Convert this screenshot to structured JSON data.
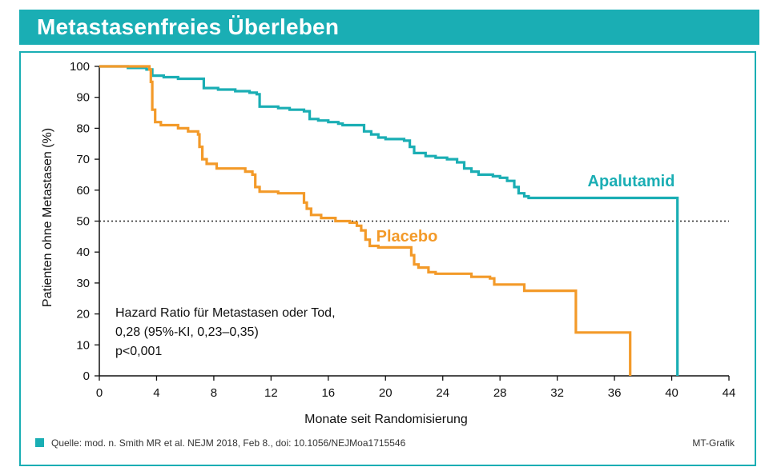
{
  "header": {
    "title": "Metastasenfreies Überleben"
  },
  "chart_data": {
    "type": "line",
    "title": "Metastasenfreies Überleben",
    "xlabel": "Monate seit Randomisierung",
    "ylabel": "Patienten ohne Metastasen (%)",
    "xlim": [
      0,
      44
    ],
    "ylim": [
      0,
      100
    ],
    "xticks": [
      0,
      4,
      8,
      12,
      16,
      20,
      24,
      28,
      32,
      36,
      40,
      44
    ],
    "yticks": [
      0,
      10,
      20,
      30,
      40,
      50,
      60,
      70,
      80,
      90,
      100
    ],
    "reference_line": {
      "y": 50,
      "style": "dotted"
    },
    "series": [
      {
        "name": "Apalutamid",
        "color": "#1aaeb4",
        "points": [
          [
            0,
            100
          ],
          [
            1,
            100
          ],
          [
            2,
            99.5
          ],
          [
            3.3,
            99
          ],
          [
            3.7,
            97
          ],
          [
            4.5,
            96.5
          ],
          [
            5.5,
            96
          ],
          [
            7,
            96
          ],
          [
            7.3,
            93
          ],
          [
            8.3,
            92.5
          ],
          [
            9.5,
            92
          ],
          [
            10.5,
            91.5
          ],
          [
            11,
            91
          ],
          [
            11.2,
            87
          ],
          [
            12.5,
            86.5
          ],
          [
            13.3,
            86
          ],
          [
            14.3,
            85.5
          ],
          [
            14.7,
            83
          ],
          [
            15.3,
            82.5
          ],
          [
            16,
            82
          ],
          [
            16.7,
            81.5
          ],
          [
            17,
            81
          ],
          [
            18,
            81
          ],
          [
            18.5,
            79
          ],
          [
            19,
            78
          ],
          [
            19.5,
            77
          ],
          [
            20,
            76.5
          ],
          [
            21,
            76.5
          ],
          [
            21.3,
            76
          ],
          [
            21.7,
            74
          ],
          [
            22,
            72
          ],
          [
            22.8,
            71
          ],
          [
            23.5,
            70.5
          ],
          [
            24.3,
            70
          ],
          [
            25,
            69
          ],
          [
            25.5,
            67
          ],
          [
            26,
            66
          ],
          [
            26.5,
            65
          ],
          [
            27.5,
            64.5
          ],
          [
            28,
            64
          ],
          [
            28.5,
            63
          ],
          [
            29,
            61
          ],
          [
            29.3,
            59
          ],
          [
            29.7,
            58
          ],
          [
            30,
            57.5
          ],
          [
            36,
            57.5
          ],
          [
            40.4,
            57.5
          ],
          [
            40.4,
            0
          ]
        ]
      },
      {
        "name": "Placebo",
        "color": "#f39a29",
        "points": [
          [
            0,
            100
          ],
          [
            2,
            100
          ],
          [
            3.5,
            99
          ],
          [
            3.6,
            95
          ],
          [
            3.7,
            86
          ],
          [
            3.9,
            82
          ],
          [
            4.3,
            81
          ],
          [
            5.5,
            80
          ],
          [
            6.2,
            79
          ],
          [
            6.9,
            78
          ],
          [
            7,
            74
          ],
          [
            7.2,
            70
          ],
          [
            7.5,
            68.5
          ],
          [
            8.2,
            67
          ],
          [
            10,
            67
          ],
          [
            10.2,
            66
          ],
          [
            10.7,
            65
          ],
          [
            10.9,
            61
          ],
          [
            11.2,
            59.5
          ],
          [
            12.5,
            59
          ],
          [
            14.1,
            59
          ],
          [
            14.3,
            56
          ],
          [
            14.5,
            54
          ],
          [
            14.8,
            52
          ],
          [
            15.5,
            51
          ],
          [
            16.5,
            50
          ],
          [
            17.5,
            49.5
          ],
          [
            18,
            48.5
          ],
          [
            18.3,
            47
          ],
          [
            18.6,
            44
          ],
          [
            18.9,
            42
          ],
          [
            19.5,
            41.5
          ],
          [
            21.5,
            41.5
          ],
          [
            21.8,
            39
          ],
          [
            22,
            36
          ],
          [
            22.3,
            35
          ],
          [
            23,
            33.5
          ],
          [
            23.5,
            33
          ],
          [
            26,
            32
          ],
          [
            27.3,
            31.5
          ],
          [
            27.6,
            29.5
          ],
          [
            29.5,
            29.5
          ],
          [
            29.7,
            27.5
          ],
          [
            33.3,
            27.5
          ],
          [
            33.3,
            14
          ],
          [
            37.1,
            14
          ],
          [
            37.1,
            0
          ]
        ]
      }
    ],
    "annotation": [
      "Hazard Ratio für Metastasen oder Tod,",
      "0,28 (95%-KI, 0,23–0,35)",
      "p<0,001"
    ]
  },
  "footer": {
    "source": "Quelle: mod. n. Smith MR et al. NEJM 2018, Feb 8., doi: 10.1056/NEJMoa1715546",
    "credit": "MT-Grafik",
    "marker_color": "#1aaeb4"
  }
}
